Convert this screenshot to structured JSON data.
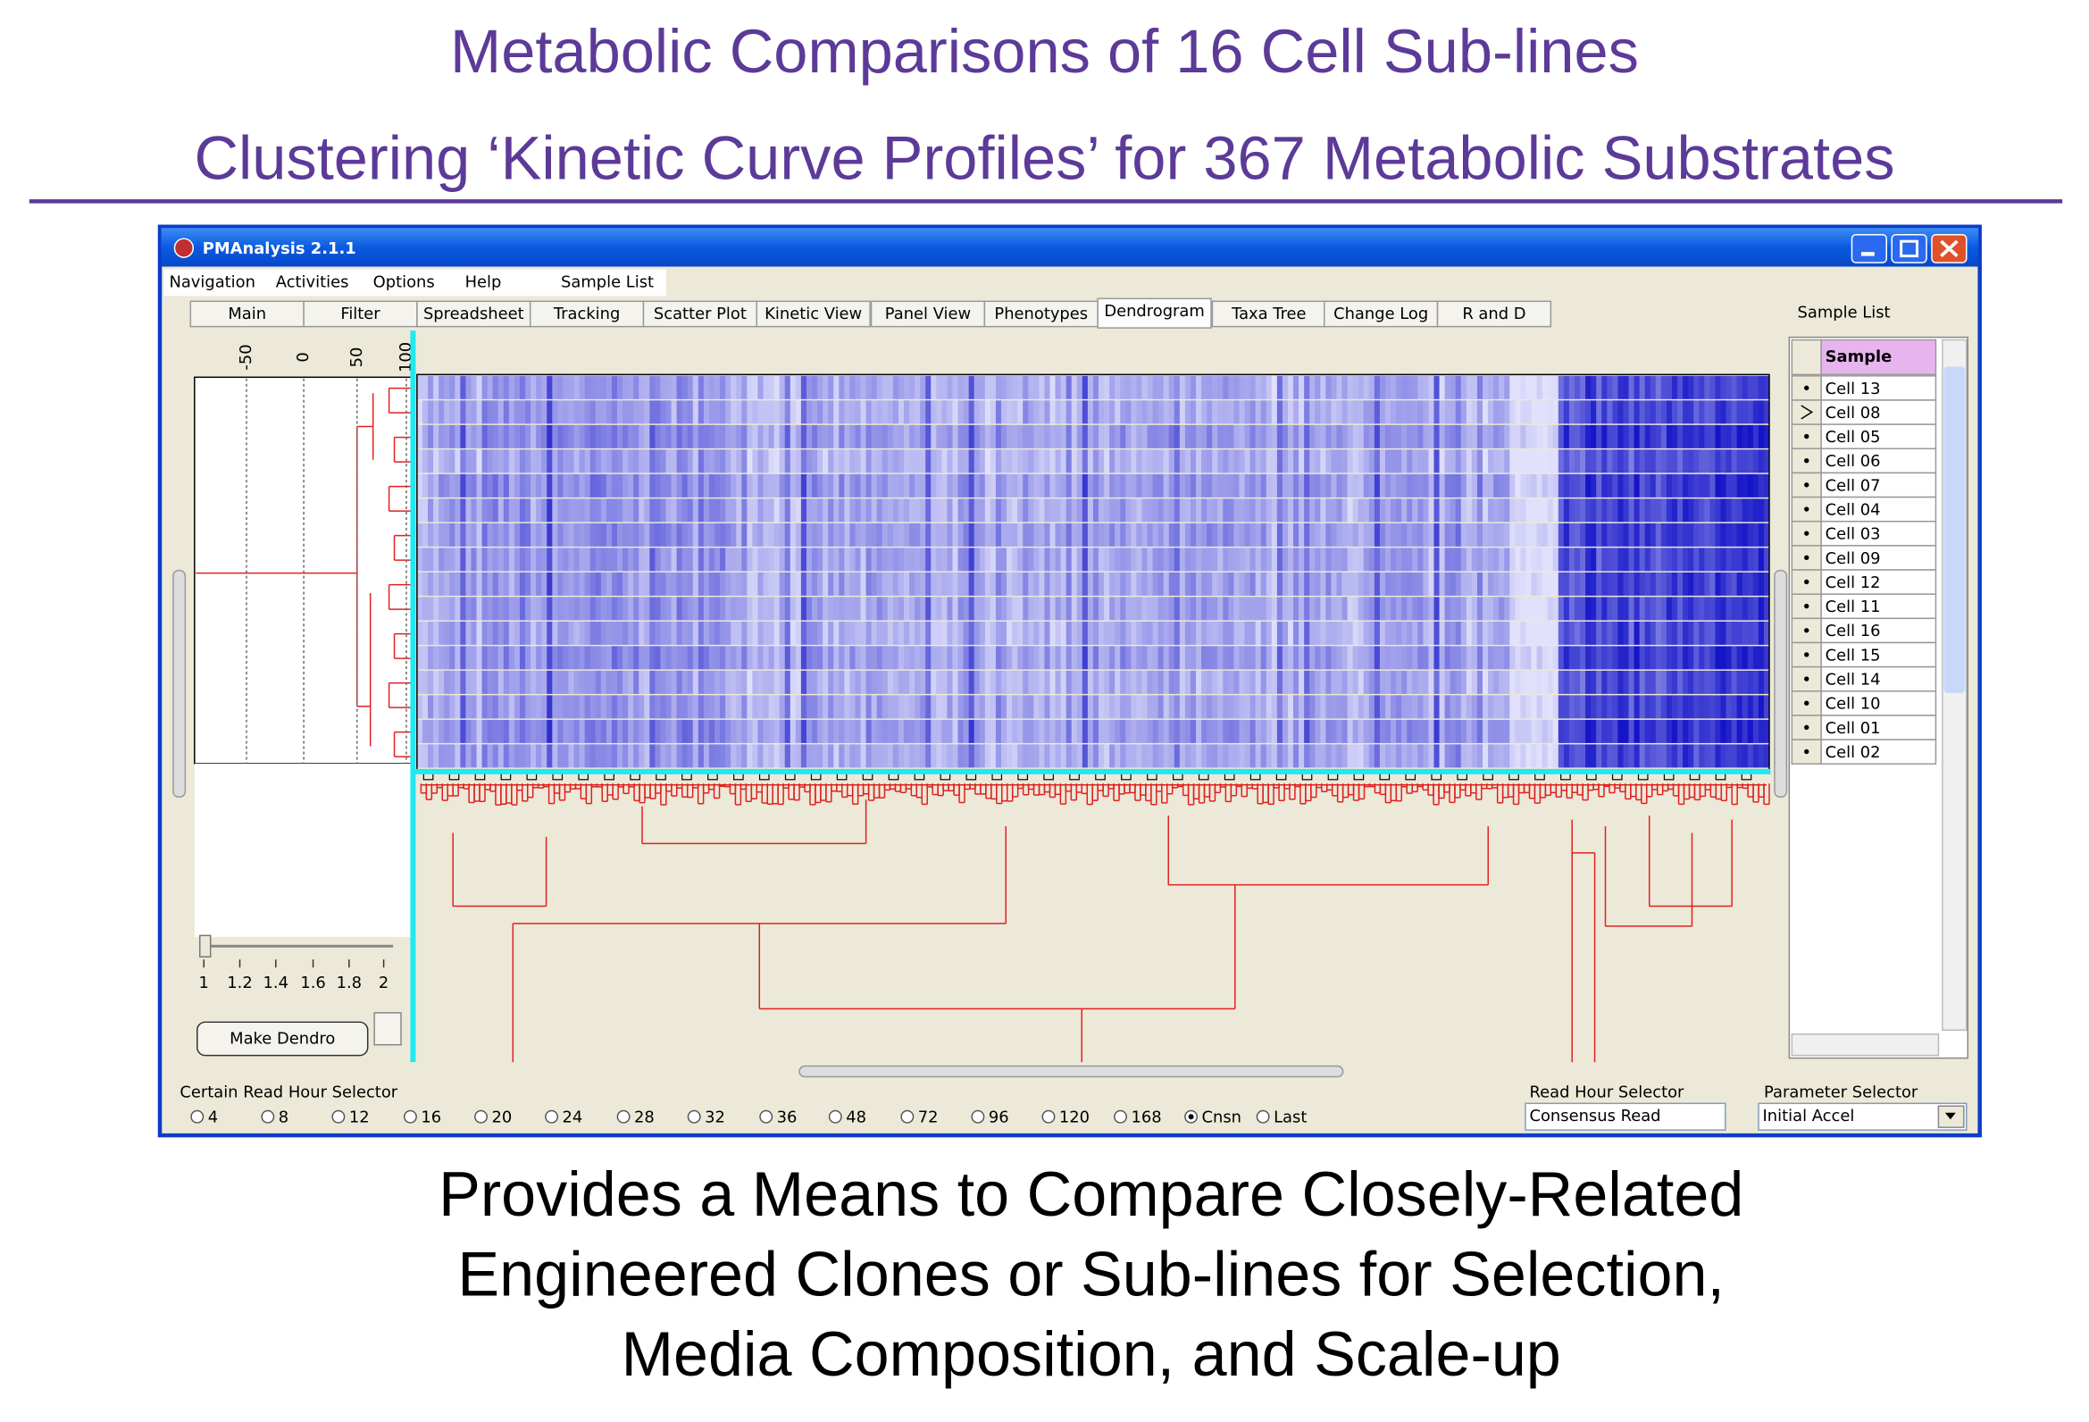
{
  "slide": {
    "title": "Metabolic Comparisons of 16 Cell Sub-lines",
    "subtitle": "Clustering ‘Kinetic Curve Profiles’ for 367 Metabolic Substrates",
    "caption": [
      "Provides a Means to Compare Closely-Related",
      "Engineered Clones or Sub-lines for Selection,",
      "Media Composition, and Scale-up"
    ]
  },
  "window": {
    "title": "PMAnalysis 2.1.1",
    "menu": [
      "Navigation",
      "Activities",
      "Options",
      "Help",
      "Sample List"
    ],
    "tabs": [
      "Main",
      "Filter",
      "Spreadsheet",
      "Tracking",
      "Scatter Plot",
      "Kinetic View",
      "Panel View",
      "Phenotypes",
      "Dendrogram",
      "Taxa Tree",
      "Change Log",
      "R and D"
    ],
    "active_tab": 8,
    "sample_list_label": "Sample List",
    "axis_ticks": [
      "-50",
      "0",
      "50",
      "100"
    ],
    "sample_header": "Sample",
    "samples": [
      "Cell 13",
      "Cell 08",
      "Cell 05",
      "Cell 06",
      "Cell 07",
      "Cell 04",
      "Cell 03",
      "Cell 09",
      "Cell 12",
      "Cell 11",
      "Cell 16",
      "Cell 15",
      "Cell 14",
      "Cell 10",
      "Cell 01",
      "Cell 02"
    ],
    "current_sample": 1,
    "slider_labels": [
      "1",
      "1.2",
      "1.4",
      "1.6",
      "1.8",
      "2"
    ],
    "button": "Make Dendro",
    "read_hour_group": "Certain Read Hour Selector",
    "read_hours": [
      "4",
      "8",
      "12",
      "16",
      "20",
      "24",
      "28",
      "32",
      "36",
      "48",
      "72",
      "96",
      "120",
      "168",
      "Cnsn",
      "Last"
    ],
    "checked_read_hour": 14,
    "read_hour_selector": {
      "label": "Read Hour Selector",
      "value": "Consensus Read"
    },
    "parameter_selector": {
      "label": "Parameter Selector",
      "value": "Initial Accel"
    }
  }
}
